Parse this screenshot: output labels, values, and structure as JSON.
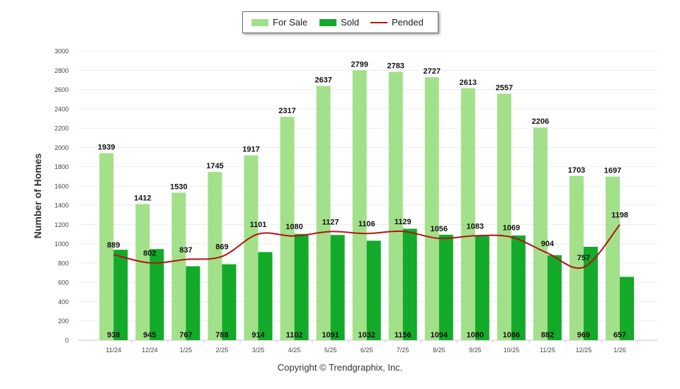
{
  "legend": {
    "for_sale": "For Sale",
    "sold": "Sold",
    "pended": "Pended"
  },
  "copyright": "Copyright © Trendgraphix, Inc.",
  "chart_data": {
    "type": "bar",
    "ylabel": "Number of Homes",
    "xlabel": "",
    "ylim": [
      0,
      3000
    ],
    "yticks": [
      0,
      200,
      400,
      600,
      800,
      1000,
      1200,
      1400,
      1600,
      1800,
      2000,
      2200,
      2400,
      2600,
      2800,
      3000
    ],
    "grid": true,
    "legend_position": "top-center",
    "categories": [
      "11/24",
      "12/24",
      "1/25",
      "2/25",
      "3/25",
      "4/25",
      "5/25",
      "6/25",
      "7/25",
      "8/25",
      "9/25",
      "10/25",
      "11/25",
      "12/25",
      "1/26"
    ],
    "series": [
      {
        "name": "For Sale",
        "kind": "bar",
        "color": "#a3e08a",
        "values": [
          1939,
          1412,
          1530,
          1745,
          1917,
          2317,
          2637,
          2799,
          2783,
          2727,
          2613,
          2557,
          2206,
          1703,
          1697
        ]
      },
      {
        "name": "Sold",
        "kind": "bar",
        "color": "#13aa2a",
        "values": [
          938,
          945,
          767,
          788,
          914,
          1102,
          1091,
          1032,
          1156,
          1094,
          1080,
          1086,
          882,
          969,
          657
        ]
      },
      {
        "name": "Pended",
        "kind": "line",
        "color": "#b01515",
        "values": [
          889,
          802,
          837,
          869,
          1101,
          1080,
          1127,
          1106,
          1129,
          1056,
          1083,
          1069,
          904,
          757,
          1198
        ]
      }
    ]
  }
}
